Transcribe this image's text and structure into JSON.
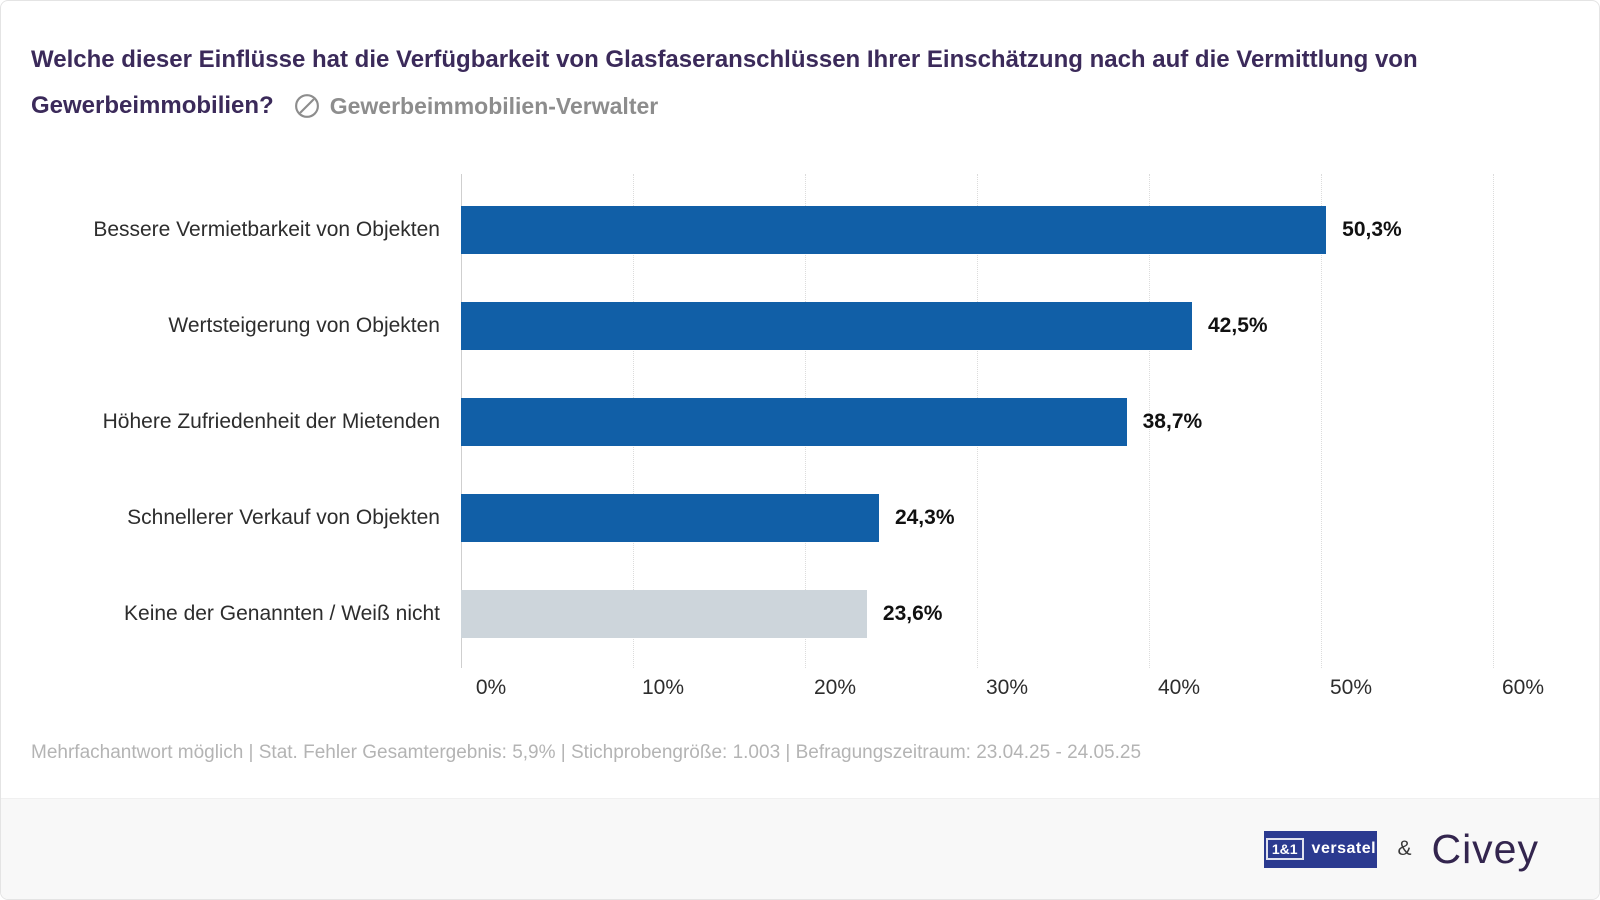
{
  "header": {
    "title_line1": "Welche dieser Einflüsse hat die Verfügbarkeit von Glasfaseranschlüssen Ihrer Einschätzung nach auf die Vermittlung von",
    "title_line2": "Gewerbeimmobilien?",
    "audience_icon": "slashed-circle-icon",
    "audience_label": "Gewerbeimmobilien-Verwalter"
  },
  "chart_data": {
    "type": "bar",
    "orientation": "horizontal",
    "title": "",
    "categories": [
      "Bessere Vermietbarkeit von Objekten",
      "Wertsteigerung von Objekten",
      "Höhere Zufriedenheit der Mietenden",
      "Schnellerer Verkauf von Objekten",
      "Keine der Genannten / Weiß nicht"
    ],
    "values": [
      50.3,
      42.5,
      38.7,
      24.3,
      23.6
    ],
    "value_labels": [
      "50,3%",
      "42,5%",
      "38,7%",
      "24,3%",
      "23,6%"
    ],
    "bar_colors": [
      "#115fa7",
      "#115fa7",
      "#115fa7",
      "#115fa7",
      "#cdd5db"
    ],
    "xlim": [
      0,
      60
    ],
    "x_ticks": [
      "0%",
      "10%",
      "20%",
      "30%",
      "40%",
      "50%",
      "60%"
    ],
    "grid": "vertical-dotted",
    "legend": "none"
  },
  "footnote": "Mehrfachantwort möglich | Stat. Fehler Gesamtergebnis: 5,9% | Stichprobengröße: 1.003 | Befragungszeitraum: 23.04.25 - 24.05.25",
  "branding": {
    "logo_1and1": "1&1",
    "logo_versatel": "versatel",
    "ampersand": "&",
    "civey": "Civey"
  },
  "colors": {
    "bar_blue": "#115fa7",
    "bar_gray": "#cdd5db",
    "title_purple": "#3b2a5a",
    "audience_gray": "#8d8d8d",
    "footnote_gray": "#b4b4b4",
    "versatel_blue": "#2b3a90",
    "civey_purple": "#33254e",
    "footer_bg": "#f8f8f8"
  }
}
